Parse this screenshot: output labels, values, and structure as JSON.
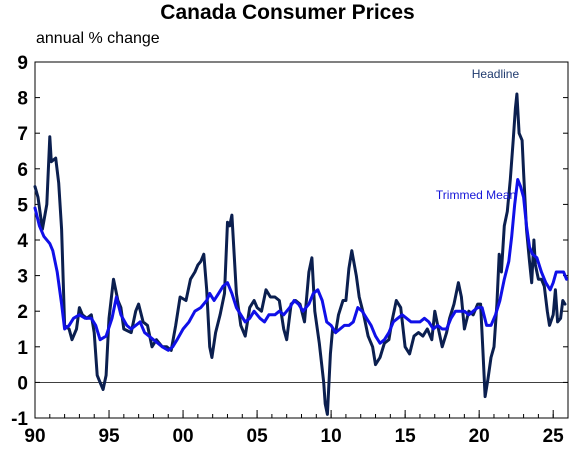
{
  "chart_data": {
    "type": "line",
    "title": "Canada Consumer Prices",
    "subtitle": "annual % change",
    "ylim": [
      -1,
      9
    ],
    "xlim": [
      1990,
      2026
    ],
    "yticks": [
      "-1",
      "0",
      "1",
      "2",
      "3",
      "4",
      "5",
      "6",
      "7",
      "8",
      "9"
    ],
    "xticks": [
      {
        "value": 1990,
        "label": "90"
      },
      {
        "value": 1995,
        "label": "95"
      },
      {
        "value": 2000,
        "label": "00"
      },
      {
        "value": 2005,
        "label": "05"
      },
      {
        "value": 2010,
        "label": "10"
      },
      {
        "value": 2015,
        "label": "15"
      },
      {
        "value": 2020,
        "label": "20"
      },
      {
        "value": 2025,
        "label": "25"
      }
    ],
    "zero_line": true,
    "series": [
      {
        "name": "Headline",
        "color": "#0b1f4f",
        "label_color": "#1f3a6e",
        "points": [
          [
            1990.0,
            5.5
          ],
          [
            1990.2,
            5.2
          ],
          [
            1990.5,
            4.3
          ],
          [
            1990.8,
            5.0
          ],
          [
            1991.0,
            6.9
          ],
          [
            1991.1,
            6.2
          ],
          [
            1991.4,
            6.3
          ],
          [
            1991.6,
            5.6
          ],
          [
            1991.8,
            4.3
          ],
          [
            1992.0,
            1.6
          ],
          [
            1992.3,
            1.5
          ],
          [
            1992.5,
            1.2
          ],
          [
            1992.8,
            1.5
          ],
          [
            1993.0,
            2.1
          ],
          [
            1993.2,
            1.9
          ],
          [
            1993.5,
            1.8
          ],
          [
            1993.8,
            1.9
          ],
          [
            1994.0,
            1.4
          ],
          [
            1994.2,
            0.2
          ],
          [
            1994.4,
            0.0
          ],
          [
            1994.6,
            -0.2
          ],
          [
            1994.8,
            0.2
          ],
          [
            1995.0,
            1.8
          ],
          [
            1995.3,
            2.9
          ],
          [
            1995.6,
            2.3
          ],
          [
            1995.8,
            2.1
          ],
          [
            1996.0,
            1.5
          ],
          [
            1996.5,
            1.4
          ],
          [
            1996.8,
            2.0
          ],
          [
            1997.0,
            2.2
          ],
          [
            1997.3,
            1.7
          ],
          [
            1997.6,
            1.6
          ],
          [
            1997.9,
            1.0
          ],
          [
            1998.2,
            1.2
          ],
          [
            1998.6,
            1.0
          ],
          [
            1998.9,
            1.0
          ],
          [
            1999.2,
            0.9
          ],
          [
            1999.5,
            1.6
          ],
          [
            1999.8,
            2.4
          ],
          [
            2000.2,
            2.3
          ],
          [
            2000.5,
            2.9
          ],
          [
            2000.8,
            3.1
          ],
          [
            2001.0,
            3.3
          ],
          [
            2001.2,
            3.4
          ],
          [
            2001.4,
            3.6
          ],
          [
            2001.6,
            2.6
          ],
          [
            2001.8,
            1.0
          ],
          [
            2001.95,
            0.7
          ],
          [
            2002.2,
            1.4
          ],
          [
            2002.5,
            1.9
          ],
          [
            2002.8,
            2.5
          ],
          [
            2003.0,
            4.5
          ],
          [
            2003.15,
            4.4
          ],
          [
            2003.3,
            4.7
          ],
          [
            2003.6,
            2.5
          ],
          [
            2003.9,
            1.6
          ],
          [
            2004.2,
            1.3
          ],
          [
            2004.5,
            2.1
          ],
          [
            2004.8,
            2.3
          ],
          [
            2005.0,
            2.1
          ],
          [
            2005.3,
            2.0
          ],
          [
            2005.6,
            2.6
          ],
          [
            2005.9,
            2.4
          ],
          [
            2006.2,
            2.4
          ],
          [
            2006.5,
            2.3
          ],
          [
            2006.8,
            1.5
          ],
          [
            2007.0,
            1.2
          ],
          [
            2007.3,
            2.2
          ],
          [
            2007.6,
            2.3
          ],
          [
            2007.9,
            2.2
          ],
          [
            2008.2,
            1.7
          ],
          [
            2008.5,
            3.1
          ],
          [
            2008.7,
            3.5
          ],
          [
            2008.9,
            2.0
          ],
          [
            2009.2,
            1.1
          ],
          [
            2009.5,
            0.0
          ],
          [
            2009.6,
            -0.6
          ],
          [
            2009.75,
            -0.9
          ],
          [
            2009.95,
            0.8
          ],
          [
            2010.1,
            1.5
          ],
          [
            2010.3,
            1.4
          ],
          [
            2010.5,
            1.9
          ],
          [
            2010.8,
            2.3
          ],
          [
            2011.0,
            2.3
          ],
          [
            2011.2,
            3.2
          ],
          [
            2011.4,
            3.7
          ],
          [
            2011.7,
            3.0
          ],
          [
            2011.9,
            2.4
          ],
          [
            2012.2,
            1.9
          ],
          [
            2012.5,
            1.3
          ],
          [
            2012.8,
            1.0
          ],
          [
            2013.0,
            0.5
          ],
          [
            2013.3,
            0.7
          ],
          [
            2013.6,
            1.1
          ],
          [
            2013.9,
            1.2
          ],
          [
            2014.1,
            1.7
          ],
          [
            2014.4,
            2.3
          ],
          [
            2014.7,
            2.1
          ],
          [
            2015.0,
            1.0
          ],
          [
            2015.3,
            0.8
          ],
          [
            2015.6,
            1.3
          ],
          [
            2015.9,
            1.4
          ],
          [
            2016.2,
            1.3
          ],
          [
            2016.5,
            1.5
          ],
          [
            2016.8,
            1.2
          ],
          [
            2017.0,
            2.0
          ],
          [
            2017.2,
            1.6
          ],
          [
            2017.5,
            1.0
          ],
          [
            2017.8,
            1.4
          ],
          [
            2018.0,
            1.8
          ],
          [
            2018.3,
            2.2
          ],
          [
            2018.6,
            2.8
          ],
          [
            2018.8,
            2.4
          ],
          [
            2019.0,
            1.5
          ],
          [
            2019.3,
            2.0
          ],
          [
            2019.6,
            1.9
          ],
          [
            2019.9,
            2.2
          ],
          [
            2020.1,
            2.2
          ],
          [
            2020.25,
            0.9
          ],
          [
            2020.4,
            -0.4
          ],
          [
            2020.6,
            0.1
          ],
          [
            2020.8,
            0.7
          ],
          [
            2021.0,
            1.0
          ],
          [
            2021.2,
            2.2
          ],
          [
            2021.35,
            3.6
          ],
          [
            2021.5,
            3.1
          ],
          [
            2021.7,
            4.4
          ],
          [
            2021.9,
            4.8
          ],
          [
            2022.1,
            5.7
          ],
          [
            2022.3,
            6.8
          ],
          [
            2022.45,
            7.7
          ],
          [
            2022.55,
            8.1
          ],
          [
            2022.7,
            7.0
          ],
          [
            2022.9,
            6.8
          ],
          [
            2023.0,
            5.9
          ],
          [
            2023.2,
            4.3
          ],
          [
            2023.4,
            3.4
          ],
          [
            2023.55,
            2.8
          ],
          [
            2023.7,
            4.0
          ],
          [
            2023.8,
            3.3
          ],
          [
            2024.0,
            2.9
          ],
          [
            2024.2,
            2.9
          ],
          [
            2024.4,
            2.7
          ],
          [
            2024.6,
            2.0
          ],
          [
            2024.75,
            1.6
          ],
          [
            2025.0,
            1.9
          ],
          [
            2025.15,
            2.6
          ],
          [
            2025.3,
            1.7
          ],
          [
            2025.5,
            1.8
          ],
          [
            2025.65,
            2.3
          ],
          [
            2025.8,
            2.2
          ]
        ]
      },
      {
        "name": "Trimmed Mean",
        "color": "#1010e8",
        "label_color": "#1515d8",
        "points": [
          [
            1990.0,
            4.9
          ],
          [
            1990.3,
            4.4
          ],
          [
            1990.6,
            4.1
          ],
          [
            1991.0,
            3.9
          ],
          [
            1991.2,
            3.7
          ],
          [
            1991.5,
            3.1
          ],
          [
            1991.8,
            2.2
          ],
          [
            1992.0,
            1.5
          ],
          [
            1992.3,
            1.6
          ],
          [
            1992.6,
            1.8
          ],
          [
            1993.0,
            1.9
          ],
          [
            1993.4,
            1.8
          ],
          [
            1993.8,
            1.8
          ],
          [
            1994.1,
            1.6
          ],
          [
            1994.4,
            1.2
          ],
          [
            1994.8,
            1.3
          ],
          [
            1995.2,
            1.8
          ],
          [
            1995.5,
            2.4
          ],
          [
            1995.8,
            1.9
          ],
          [
            1996.2,
            1.6
          ],
          [
            1996.5,
            1.5
          ],
          [
            1996.8,
            1.6
          ],
          [
            1997.1,
            1.7
          ],
          [
            1997.4,
            1.4
          ],
          [
            1997.7,
            1.3
          ],
          [
            1998.0,
            1.2
          ],
          [
            1998.3,
            1.1
          ],
          [
            1998.6,
            1.0
          ],
          [
            1999.0,
            0.9
          ],
          [
            1999.3,
            1.0
          ],
          [
            1999.6,
            1.2
          ],
          [
            2000.0,
            1.5
          ],
          [
            2000.4,
            1.7
          ],
          [
            2000.8,
            2.0
          ],
          [
            2001.2,
            2.1
          ],
          [
            2001.6,
            2.3
          ],
          [
            2001.8,
            2.5
          ],
          [
            2002.1,
            2.3
          ],
          [
            2002.4,
            2.5
          ],
          [
            2002.7,
            2.7
          ],
          [
            2003.0,
            2.8
          ],
          [
            2003.3,
            2.5
          ],
          [
            2003.6,
            2.1
          ],
          [
            2003.9,
            1.9
          ],
          [
            2004.2,
            1.7
          ],
          [
            2004.5,
            1.8
          ],
          [
            2004.8,
            2.0
          ],
          [
            2005.2,
            1.8
          ],
          [
            2005.5,
            1.7
          ],
          [
            2005.8,
            1.9
          ],
          [
            2006.2,
            1.9
          ],
          [
            2006.5,
            2.0
          ],
          [
            2006.8,
            1.9
          ],
          [
            2007.2,
            2.1
          ],
          [
            2007.5,
            2.3
          ],
          [
            2007.8,
            2.2
          ],
          [
            2008.1,
            2.0
          ],
          [
            2008.5,
            2.2
          ],
          [
            2008.8,
            2.5
          ],
          [
            2009.1,
            2.6
          ],
          [
            2009.4,
            2.3
          ],
          [
            2009.7,
            1.7
          ],
          [
            2010.0,
            1.6
          ],
          [
            2010.3,
            1.4
          ],
          [
            2010.6,
            1.5
          ],
          [
            2010.9,
            1.6
          ],
          [
            2011.2,
            1.6
          ],
          [
            2011.5,
            1.7
          ],
          [
            2011.8,
            2.1
          ],
          [
            2012.1,
            2.0
          ],
          [
            2012.4,
            1.8
          ],
          [
            2012.7,
            1.6
          ],
          [
            2013.0,
            1.3
          ],
          [
            2013.3,
            1.1
          ],
          [
            2013.6,
            1.2
          ],
          [
            2013.9,
            1.4
          ],
          [
            2014.2,
            1.7
          ],
          [
            2014.5,
            1.8
          ],
          [
            2014.8,
            1.9
          ],
          [
            2015.1,
            1.8
          ],
          [
            2015.4,
            1.7
          ],
          [
            2015.7,
            1.7
          ],
          [
            2016.0,
            1.7
          ],
          [
            2016.3,
            1.8
          ],
          [
            2016.6,
            1.7
          ],
          [
            2016.9,
            1.5
          ],
          [
            2017.2,
            1.6
          ],
          [
            2017.5,
            1.5
          ],
          [
            2017.8,
            1.5
          ],
          [
            2018.1,
            1.8
          ],
          [
            2018.4,
            2.0
          ],
          [
            2018.7,
            2.0
          ],
          [
            2019.0,
            2.0
          ],
          [
            2019.3,
            1.9
          ],
          [
            2019.6,
            2.0
          ],
          [
            2019.9,
            2.1
          ],
          [
            2020.2,
            2.1
          ],
          [
            2020.5,
            1.6
          ],
          [
            2020.8,
            1.6
          ],
          [
            2021.1,
            1.9
          ],
          [
            2021.4,
            2.3
          ],
          [
            2021.7,
            2.9
          ],
          [
            2022.0,
            3.4
          ],
          [
            2022.2,
            4.1
          ],
          [
            2022.4,
            5.0
          ],
          [
            2022.6,
            5.7
          ],
          [
            2022.8,
            5.5
          ],
          [
            2023.0,
            5.2
          ],
          [
            2023.2,
            4.4
          ],
          [
            2023.4,
            3.8
          ],
          [
            2023.6,
            3.6
          ],
          [
            2023.9,
            3.5
          ],
          [
            2024.2,
            3.1
          ],
          [
            2024.5,
            2.8
          ],
          [
            2024.8,
            2.6
          ],
          [
            2025.0,
            2.8
          ],
          [
            2025.2,
            3.1
          ],
          [
            2025.5,
            3.1
          ],
          [
            2025.7,
            3.1
          ],
          [
            2025.9,
            2.9
          ]
        ]
      }
    ],
    "annotations": [
      {
        "text": "Headline",
        "series": 0,
        "at": [
          2022.7,
          8.55
        ]
      },
      {
        "text": "Trimmed Mean",
        "series": 1,
        "at": [
          2022.5,
          5.15
        ]
      }
    ]
  }
}
